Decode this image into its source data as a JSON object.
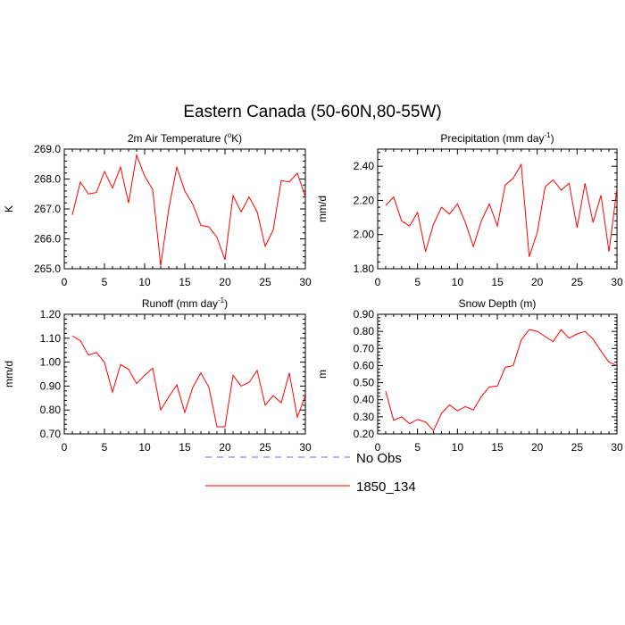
{
  "figure_title": "Eastern Canada (50-60N,80-55W)",
  "legend": [
    {
      "label": "No Obs",
      "color": "#6666ff",
      "dashed": true
    },
    {
      "label": "1850_134",
      "color": "#ff0000",
      "dashed": false
    }
  ],
  "chart_data": [
    {
      "type": "line",
      "title": "2m Air Temperature (°K)",
      "ylabel": "K",
      "xlim": [
        0,
        30
      ],
      "ylim": [
        265.0,
        269.0
      ],
      "xticks": [
        "0",
        "5",
        "10",
        "15",
        "20",
        "25",
        "30"
      ],
      "yticks": [
        "265.0",
        "266.0",
        "267.0",
        "268.0",
        "269.0"
      ],
      "x": [
        1,
        2,
        3,
        4,
        5,
        6,
        7,
        8,
        9,
        10,
        11,
        12,
        13,
        14,
        15,
        16,
        17,
        18,
        19,
        20,
        21,
        22,
        23,
        24,
        25,
        26,
        27,
        28,
        29,
        30
      ],
      "series": [
        {
          "name": "1850_134",
          "color": "#ff0000",
          "values": [
            266.8,
            267.9,
            267.5,
            267.55,
            268.25,
            267.7,
            268.4,
            267.2,
            268.8,
            268.1,
            267.65,
            265.1,
            267.0,
            268.4,
            267.6,
            267.15,
            266.45,
            266.4,
            266.05,
            265.3,
            267.45,
            266.9,
            267.4,
            266.9,
            265.75,
            266.3,
            267.95,
            267.9,
            268.2,
            267.4
          ]
        }
      ]
    },
    {
      "type": "line",
      "title": "Precipitation (mm day-1)",
      "ylabel": "mm/d",
      "xlim": [
        0,
        30
      ],
      "ylim": [
        1.8,
        2.5
      ],
      "xticks": [
        "0",
        "5",
        "10",
        "15",
        "20",
        "25",
        "30"
      ],
      "yticks": [
        "1.80",
        "2.00",
        "2.20",
        "2.40"
      ],
      "x": [
        1,
        2,
        3,
        4,
        5,
        6,
        7,
        8,
        9,
        10,
        11,
        12,
        13,
        14,
        15,
        16,
        17,
        18,
        19,
        20,
        21,
        22,
        23,
        24,
        25,
        26,
        27,
        28,
        29,
        30
      ],
      "series": [
        {
          "name": "1850_134",
          "color": "#ff0000",
          "values": [
            2.17,
            2.22,
            2.08,
            2.05,
            2.13,
            1.9,
            2.06,
            2.16,
            2.12,
            2.18,
            2.07,
            1.93,
            2.08,
            2.18,
            2.05,
            2.29,
            2.33,
            2.41,
            1.87,
            2.01,
            2.28,
            2.32,
            2.26,
            2.3,
            2.04,
            2.3,
            2.07,
            2.23,
            1.9,
            2.27
          ]
        }
      ]
    },
    {
      "type": "line",
      "title": "Runoff (mm day-1)",
      "ylabel": "mm/d",
      "xlim": [
        0,
        30
      ],
      "ylim": [
        0.7,
        1.2
      ],
      "xticks": [
        "0",
        "5",
        "10",
        "15",
        "20",
        "25",
        "30"
      ],
      "yticks": [
        "0.70",
        "0.80",
        "0.90",
        "1.00",
        "1.10",
        "1.20"
      ],
      "x": [
        1,
        2,
        3,
        4,
        5,
        6,
        7,
        8,
        9,
        10,
        11,
        12,
        13,
        14,
        15,
        16,
        17,
        18,
        19,
        20,
        21,
        22,
        23,
        24,
        25,
        26,
        27,
        28,
        29,
        30
      ],
      "series": [
        {
          "name": "1850_134",
          "color": "#ff0000",
          "values": [
            1.11,
            1.09,
            1.03,
            1.04,
            1.0,
            0.875,
            0.99,
            0.97,
            0.91,
            0.945,
            0.975,
            0.8,
            0.855,
            0.905,
            0.79,
            0.895,
            0.955,
            0.895,
            0.73,
            0.73,
            0.945,
            0.9,
            0.915,
            0.965,
            0.82,
            0.86,
            0.83,
            0.955,
            0.77,
            0.86
          ]
        }
      ]
    },
    {
      "type": "line",
      "title": "Snow Depth (m)",
      "ylabel": "m",
      "xlim": [
        0,
        30
      ],
      "ylim": [
        0.2,
        0.9
      ],
      "xticks": [
        "0",
        "5",
        "10",
        "15",
        "20",
        "25",
        "30"
      ],
      "yticks": [
        "0.20",
        "0.30",
        "0.40",
        "0.50",
        "0.60",
        "0.70",
        "0.80",
        "0.90"
      ],
      "x": [
        1,
        2,
        3,
        4,
        5,
        6,
        7,
        8,
        9,
        10,
        11,
        12,
        13,
        14,
        15,
        16,
        17,
        18,
        19,
        20,
        21,
        22,
        23,
        24,
        25,
        26,
        27,
        28,
        29,
        30
      ],
      "series": [
        {
          "name": "1850_134",
          "color": "#ff0000",
          "values": [
            0.45,
            0.28,
            0.3,
            0.26,
            0.285,
            0.27,
            0.22,
            0.32,
            0.37,
            0.335,
            0.36,
            0.34,
            0.42,
            0.475,
            0.48,
            0.59,
            0.6,
            0.75,
            0.81,
            0.8,
            0.77,
            0.74,
            0.81,
            0.76,
            0.785,
            0.8,
            0.755,
            0.685,
            0.62,
            0.6
          ]
        }
      ]
    }
  ]
}
